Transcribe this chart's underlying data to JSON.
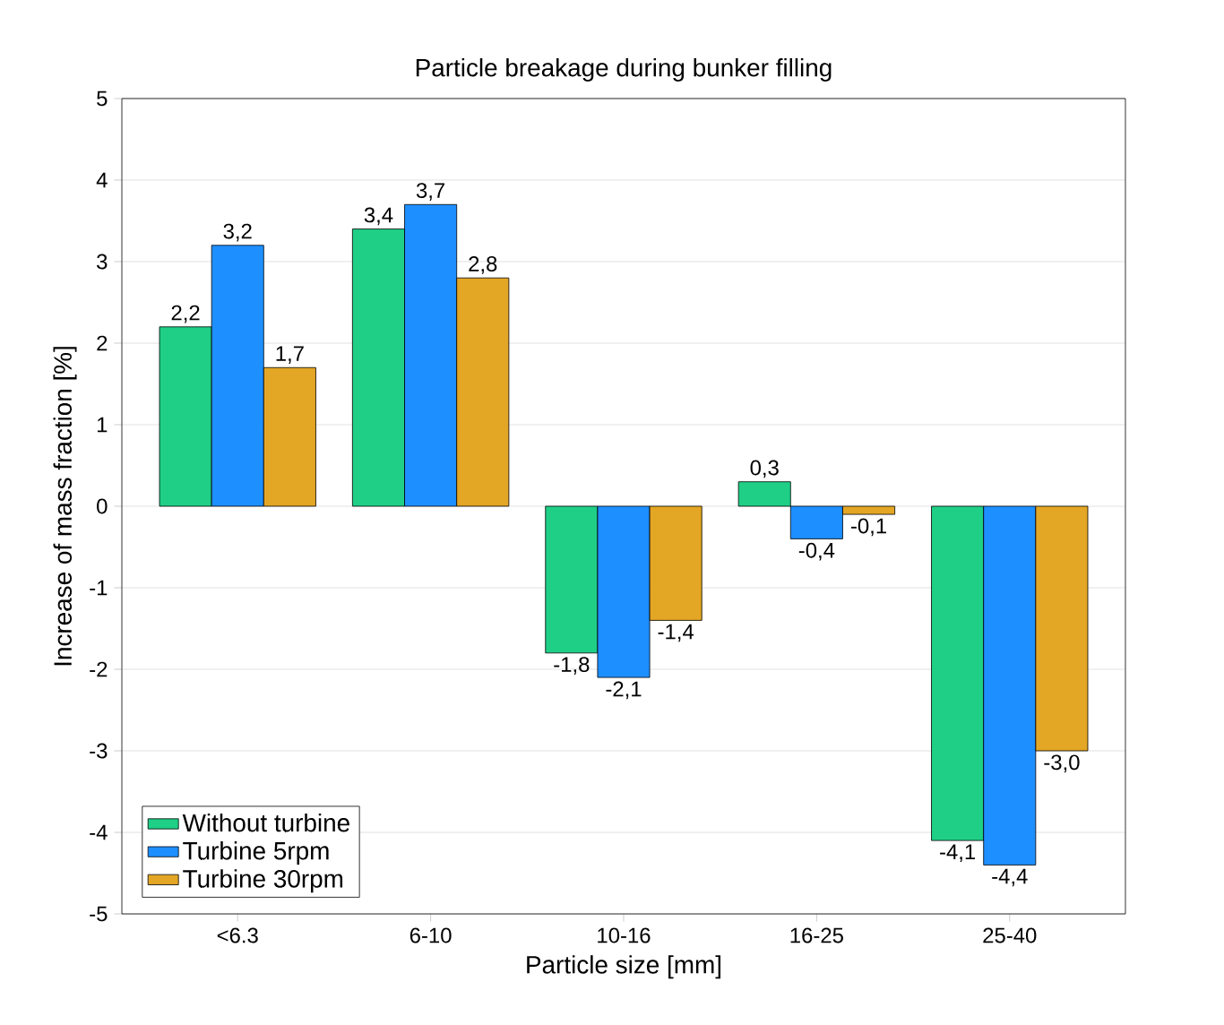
{
  "chart_data": {
    "type": "bar",
    "title": "Particle breakage during bunker filling",
    "xlabel": "Particle size [mm]",
    "ylabel": "Increase of mass fraction [%]",
    "categories": [
      "<6.3",
      "6-10",
      "10-16",
      "16-25",
      "25-40"
    ],
    "series": [
      {
        "name": "Without turbine",
        "color": "#1fcf86",
        "values": [
          2.2,
          3.4,
          -1.8,
          0.3,
          -4.1
        ],
        "value_labels": [
          "2,2",
          "3,4",
          "-1,8",
          "0,3",
          "-4,1"
        ]
      },
      {
        "name": "Turbine 5rpm",
        "color": "#1e8fff",
        "values": [
          3.2,
          3.7,
          -2.1,
          -0.4,
          -4.4
        ],
        "value_labels": [
          "3,2",
          "3,7",
          "-2,1",
          "-0,4",
          "-4,4"
        ]
      },
      {
        "name": "Turbine 30rpm",
        "color": "#e3a625",
        "values": [
          1.7,
          2.8,
          -1.4,
          -0.1,
          -3.0
        ],
        "value_labels": [
          "1,7",
          "2,8",
          "-1,4",
          "-0,1",
          "-3,0"
        ]
      }
    ],
    "ylim": [
      -5,
      5
    ],
    "yticks": [
      -5,
      -4,
      -3,
      -2,
      -1,
      0,
      1,
      2,
      3,
      4,
      5
    ],
    "grid": "y",
    "legend": "bottom left"
  }
}
